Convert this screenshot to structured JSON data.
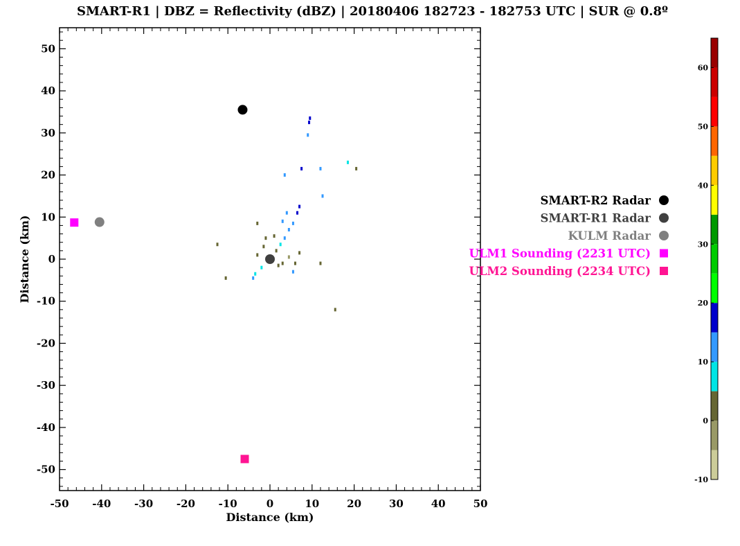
{
  "chart_data": {
    "type": "scatter",
    "title": "SMART-R1 | DBZ = Reflectivity (dBZ) | 20180406 182723 - 182753 UTC | SUR @ 0.8º",
    "xlabel": "Distance (km)",
    "ylabel": "Distance (km)",
    "xlim": [
      -50,
      50
    ],
    "ylim": [
      -55,
      55
    ],
    "xticks": [
      -50,
      -40,
      -30,
      -20,
      -10,
      0,
      10,
      20,
      30,
      40,
      50
    ],
    "yticks": [
      -50,
      -40,
      -30,
      -20,
      -10,
      0,
      10,
      20,
      30,
      40,
      50
    ],
    "grid": false,
    "legend_position": "right",
    "markers": [
      {
        "name": "SMART-R2 Radar",
        "x": -6.5,
        "y": 35.5,
        "shape": "circle",
        "color": "#000000"
      },
      {
        "name": "SMART-R1 Radar",
        "x": 0,
        "y": 0,
        "shape": "circle",
        "color": "#404040"
      },
      {
        "name": "KULM Radar",
        "x": -40.5,
        "y": 8.8,
        "shape": "circle",
        "color": "#808080"
      },
      {
        "name": "ULM1 Sounding (2231 UTC)",
        "x": -46.5,
        "y": 8.7,
        "shape": "square",
        "color": "#ff00ff"
      },
      {
        "name": "ULM2 Sounding (2234 UTC)",
        "x": -6,
        "y": -47.5,
        "shape": "square",
        "color": "#ff1493"
      }
    ],
    "echo_points": [
      {
        "x": 1.5,
        "y": 2,
        "dbz": 0
      },
      {
        "x": 2.5,
        "y": 3.5,
        "dbz": 8
      },
      {
        "x": 3.5,
        "y": 5,
        "dbz": 10
      },
      {
        "x": 4.5,
        "y": 7,
        "dbz": 12
      },
      {
        "x": 5.5,
        "y": 8.5,
        "dbz": 14
      },
      {
        "x": 6.5,
        "y": 11,
        "dbz": 16
      },
      {
        "x": 7,
        "y": 12.5,
        "dbz": 15
      },
      {
        "x": 4,
        "y": 11,
        "dbz": 12
      },
      {
        "x": 3,
        "y": 9,
        "dbz": 12
      },
      {
        "x": -1.5,
        "y": 3,
        "dbz": 0
      },
      {
        "x": -3,
        "y": 1,
        "dbz": 2
      },
      {
        "x": -2,
        "y": -2,
        "dbz": 6
      },
      {
        "x": -3.5,
        "y": -3.5,
        "dbz": 8
      },
      {
        "x": -4,
        "y": -4.5,
        "dbz": 14
      },
      {
        "x": 2,
        "y": -1.5,
        "dbz": 2
      },
      {
        "x": 3,
        "y": -1,
        "dbz": 0
      },
      {
        "x": 4.5,
        "y": 0.5,
        "dbz": -3
      },
      {
        "x": 6,
        "y": -1,
        "dbz": 0
      },
      {
        "x": 7,
        "y": 1.5,
        "dbz": 2
      },
      {
        "x": 9.5,
        "y": 33.5,
        "dbz": 18
      },
      {
        "x": 9.3,
        "y": 32.5,
        "dbz": 17
      },
      {
        "x": 9,
        "y": 29.5,
        "dbz": 14
      },
      {
        "x": 7.5,
        "y": 21.5,
        "dbz": 15
      },
      {
        "x": 3.5,
        "y": 20,
        "dbz": 12
      },
      {
        "x": 12,
        "y": 21.5,
        "dbz": 14
      },
      {
        "x": 12.5,
        "y": 15,
        "dbz": 12
      },
      {
        "x": 18.5,
        "y": 23,
        "dbz": 5
      },
      {
        "x": 20.5,
        "y": 21.5,
        "dbz": 3
      },
      {
        "x": 15.5,
        "y": -12,
        "dbz": 0
      },
      {
        "x": -12.5,
        "y": 3.5,
        "dbz": 0
      },
      {
        "x": -10.5,
        "y": -4.5,
        "dbz": 2
      },
      {
        "x": -3,
        "y": 8.5,
        "dbz": 0
      },
      {
        "x": 12,
        "y": -1,
        "dbz": 0
      },
      {
        "x": 5.5,
        "y": -3,
        "dbz": 12
      },
      {
        "x": -1,
        "y": 5,
        "dbz": 2
      },
      {
        "x": 1,
        "y": 5.5,
        "dbz": 3
      }
    ],
    "colorbar": {
      "label_ticks": [
        -10,
        0,
        10,
        20,
        30,
        40,
        50,
        60
      ],
      "range": [
        -10,
        65
      ],
      "segments": [
        {
          "from": -10,
          "to": -5,
          "color": "#cccc99"
        },
        {
          "from": -5,
          "to": 0,
          "color": "#999966"
        },
        {
          "from": 0,
          "to": 5,
          "color": "#666633"
        },
        {
          "from": 5,
          "to": 10,
          "color": "#00e5e5"
        },
        {
          "from": 10,
          "to": 15,
          "color": "#3399ff"
        },
        {
          "from": 15,
          "to": 20,
          "color": "#0000cc"
        },
        {
          "from": 20,
          "to": 25,
          "color": "#00ff00"
        },
        {
          "from": 25,
          "to": 30,
          "color": "#00cc00"
        },
        {
          "from": 30,
          "to": 35,
          "color": "#009900"
        },
        {
          "from": 35,
          "to": 40,
          "color": "#ffff00"
        },
        {
          "from": 40,
          "to": 45,
          "color": "#ffcc00"
        },
        {
          "from": 45,
          "to": 50,
          "color": "#ff6600"
        },
        {
          "from": 50,
          "to": 55,
          "color": "#ff0000"
        },
        {
          "from": 55,
          "to": 60,
          "color": "#cc0000"
        },
        {
          "from": 60,
          "to": 65,
          "color": "#990000"
        }
      ]
    }
  }
}
